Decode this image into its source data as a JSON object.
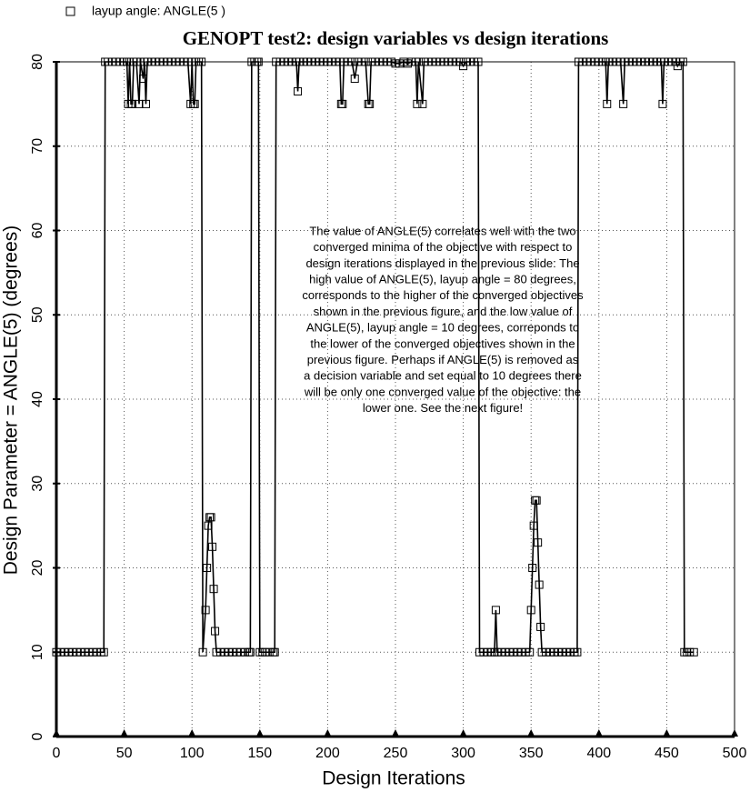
{
  "chart_data": {
    "type": "line",
    "title": "GENOPT test2: design variables vs design iterations",
    "xlabel": "Design Iterations",
    "ylabel": "Design Parameter = ANGLE(5) (degrees)",
    "annotation": [
      "The value of ANGLE(5) correlates well with the two",
      "converged minima of the objective with respect to",
      "design iterations displayed in the previous slide: The",
      "high value of ANGLE(5), layup angle = 80 degrees,",
      "corresponds to the higher of the converged objectives",
      "shown in the previous figure, and the low value of",
      "ANGLE(5), layup angle = 10 degrees, correponds to",
      "the lower of the converged objectives shown in the",
      "previous figure. Perhaps if ANGLE(5) is removed as",
      "a decision variable and set equal to 10 degrees there",
      "will be only one converged value of the objective: the",
      "lower one. See the next figure!"
    ],
    "xlim": [
      0,
      500
    ],
    "xticks": [
      0,
      50,
      100,
      150,
      200,
      250,
      300,
      350,
      400,
      450,
      500
    ],
    "ylim": [
      0,
      80
    ],
    "yticks": [
      0,
      10,
      20,
      30,
      40,
      50,
      60,
      70,
      80
    ],
    "grid": true,
    "legend": "top-left",
    "x": [
      0,
      3,
      6,
      9,
      12,
      15,
      18,
      21,
      24,
      27,
      30,
      33,
      35,
      36,
      38,
      41,
      44,
      47,
      50,
      52,
      53,
      54,
      55,
      56,
      57,
      59,
      61,
      62,
      64,
      65,
      66,
      67,
      70,
      73,
      76,
      79,
      82,
      85,
      88,
      91,
      94,
      97,
      99,
      100,
      101,
      102,
      103,
      105,
      107,
      108,
      110,
      111,
      112,
      113,
      114,
      115,
      116,
      117,
      118,
      121,
      124,
      127,
      130,
      133,
      136,
      139,
      142,
      143,
      144,
      146,
      148,
      149,
      150,
      152,
      154,
      157,
      160,
      161,
      162,
      165,
      168,
      171,
      174,
      177,
      178,
      179,
      182,
      185,
      188,
      191,
      194,
      197,
      200,
      203,
      206,
      209,
      210,
      211,
      212,
      215,
      218,
      220,
      222,
      225,
      228,
      230,
      231,
      232,
      235,
      238,
      241,
      244,
      247,
      250,
      253,
      256,
      259,
      262,
      265,
      266,
      267,
      270,
      271,
      274,
      277,
      280,
      283,
      286,
      289,
      292,
      295,
      298,
      300,
      302,
      305,
      308,
      311,
      312,
      315,
      318,
      321,
      323,
      324,
      325,
      328,
      331,
      334,
      337,
      340,
      343,
      346,
      349,
      350,
      351,
      352,
      353,
      354,
      355,
      356,
      357,
      358,
      361,
      364,
      367,
      370,
      373,
      376,
      379,
      382,
      384,
      385,
      388,
      391,
      394,
      397,
      400,
      403,
      405,
      406,
      407,
      410,
      413,
      416,
      418,
      419,
      422,
      425,
      428,
      431,
      434,
      437,
      440,
      443,
      446,
      447,
      448,
      451,
      454,
      457,
      458,
      460,
      462,
      463,
      465,
      467,
      470
    ],
    "series": [
      {
        "name": "layup angle: ANGLE(5 )",
        "color": "#000000",
        "values": [
          10,
          10,
          10,
          10,
          10,
          10,
          10,
          10,
          10,
          10,
          10,
          10,
          10,
          80,
          80,
          80,
          80,
          80,
          80,
          80,
          75,
          80,
          75,
          75,
          80,
          80,
          75,
          80,
          78,
          80,
          75,
          80,
          80,
          80,
          80,
          80,
          80,
          80,
          80,
          80,
          80,
          80,
          75,
          80,
          75,
          75,
          80,
          80,
          80,
          10,
          15,
          20,
          25,
          26,
          26,
          22.5,
          17.5,
          12.5,
          10,
          10,
          10,
          10,
          10,
          10,
          10,
          10,
          10,
          10,
          80,
          80,
          80,
          80,
          10,
          10,
          10,
          10,
          10,
          10,
          80,
          80,
          80,
          80,
          80,
          80,
          76.5,
          80,
          80,
          80,
          80,
          80,
          80,
          80,
          80,
          80,
          80,
          80,
          75,
          75,
          80,
          80,
          80,
          78,
          80,
          80,
          80,
          75,
          75,
          80,
          80,
          80,
          80,
          80,
          80,
          79.8,
          79.8,
          80,
          79.8,
          80,
          80,
          75,
          80,
          75,
          80,
          80,
          80,
          80,
          80,
          80,
          80,
          80,
          80,
          80,
          79.5,
          80,
          80,
          80,
          80,
          10,
          10,
          10,
          10,
          10,
          15,
          10,
          10,
          10,
          10,
          10,
          10,
          10,
          10,
          10,
          15,
          20,
          25,
          28,
          28,
          23,
          18,
          13,
          10,
          10,
          10,
          10,
          10,
          10,
          10,
          10,
          10,
          10,
          80,
          80,
          80,
          80,
          80,
          80,
          80,
          80,
          75,
          80,
          80,
          80,
          80,
          75,
          80,
          80,
          80,
          80,
          80,
          80,
          80,
          80,
          80,
          80,
          75,
          80,
          80,
          80,
          80,
          79.5,
          80,
          80,
          10,
          10,
          10,
          10
        ]
      }
    ]
  }
}
